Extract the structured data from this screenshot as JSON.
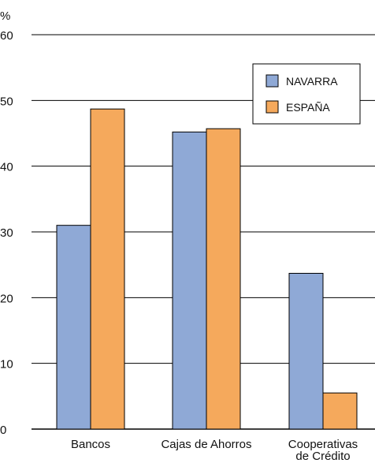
{
  "chart_data": {
    "type": "bar",
    "ylabel": "%",
    "ylim": [
      0,
      60
    ],
    "yticks": [
      0,
      10,
      20,
      30,
      40,
      50,
      60
    ],
    "categories": [
      [
        "Bancos"
      ],
      [
        "Cajas de Ahorros"
      ],
      [
        "Cooperativas",
        "de Crédito"
      ]
    ],
    "series": [
      {
        "name": "NAVARRA",
        "color": "#8fa9d6",
        "values": [
          31,
          45.2,
          23.7
        ]
      },
      {
        "name": "ESPAÑA",
        "color": "#f5a95c",
        "values": [
          48.7,
          45.7,
          5.5
        ]
      }
    ],
    "grid": true,
    "legend": "top-right"
  }
}
